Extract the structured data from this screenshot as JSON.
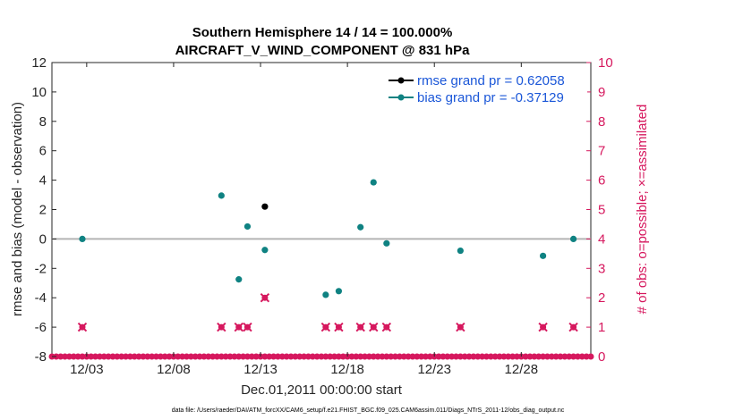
{
  "chart_data": {
    "type": "scatter",
    "title": "Southern Hemisphere 14 / 14 = 100.000%",
    "subtitle": "AIRCRAFT_V_WIND_COMPONENT @ 831 hPa",
    "xlabel": "Dec.01,2011 00:00:00 start",
    "ylabel": "rmse and bias (model - observation)",
    "y2label": "# of obs: o=possible; ×=assimilated",
    "footnote": "data file: /Users/raeder/DAI/ATM_forcXX/CAM6_setup/f.e21.FHIST_BGC.f09_025.CAM6assim.011/Diags_NTrS_2011-12/obs_diag_output.nc",
    "xlim": [
      1,
      32
    ],
    "ylim": [
      -8,
      12
    ],
    "y2lim": [
      0,
      10
    ],
    "x_ticks": [
      3,
      8,
      13,
      18,
      23,
      28
    ],
    "x_tick_labels": [
      "12/03",
      "12/08",
      "12/13",
      "12/18",
      "12/23",
      "12/28"
    ],
    "y_ticks": [
      -8,
      -6,
      -4,
      -2,
      0,
      2,
      4,
      6,
      8,
      10,
      12
    ],
    "y_tick_labels": [
      "-8",
      "-6",
      "-4",
      "-2",
      "0",
      "2",
      "4",
      "6",
      "8",
      "10",
      "12"
    ],
    "y2_ticks": [
      0,
      1,
      2,
      3,
      4,
      5,
      6,
      7,
      8,
      9,
      10
    ],
    "y2_tick_labels": [
      "0",
      "1",
      "2",
      "3",
      "4",
      "5",
      "6",
      "7",
      "8",
      "9",
      "10"
    ],
    "grid": false,
    "legend_position": "top-right",
    "colors": {
      "rmse": "#000000",
      "bias": "#0f8282",
      "obs": "#d6185e",
      "legend_text": "#1b57d8",
      "zero_line": "#b4b4b4"
    },
    "series": [
      {
        "name": "rmse grand pr = 0.62058",
        "axis": "left",
        "marker": "circle",
        "points": [
          {
            "x": 13.25,
            "y": 2.2
          }
        ]
      },
      {
        "name": "bias grand pr = -0.37129",
        "axis": "left",
        "marker": "circle",
        "points": [
          {
            "x": 2.75,
            "y": 0.0
          },
          {
            "x": 10.75,
            "y": 2.95
          },
          {
            "x": 11.75,
            "y": -2.75
          },
          {
            "x": 12.25,
            "y": 0.85
          },
          {
            "x": 13.25,
            "y": -0.75
          },
          {
            "x": 16.75,
            "y": -3.8
          },
          {
            "x": 17.5,
            "y": -3.55
          },
          {
            "x": 18.75,
            "y": 0.8
          },
          {
            "x": 19.5,
            "y": 3.85
          },
          {
            "x": 20.25,
            "y": -0.3
          },
          {
            "x": 24.5,
            "y": -0.8
          },
          {
            "x": 29.25,
            "y": -1.15
          },
          {
            "x": 31.0,
            "y": 0.0
          }
        ]
      },
      {
        "name": "obs possible",
        "axis": "right",
        "marker": "circle",
        "points": [
          {
            "x": 2.75,
            "y": 1
          },
          {
            "x": 10.75,
            "y": 1
          },
          {
            "x": 11.75,
            "y": 1
          },
          {
            "x": 12.25,
            "y": 1
          },
          {
            "x": 13.25,
            "y": 2
          },
          {
            "x": 16.75,
            "y": 1
          },
          {
            "x": 17.5,
            "y": 1
          },
          {
            "x": 18.75,
            "y": 1
          },
          {
            "x": 19.5,
            "y": 1
          },
          {
            "x": 20.25,
            "y": 1
          },
          {
            "x": 24.5,
            "y": 1
          },
          {
            "x": 29.25,
            "y": 1
          },
          {
            "x": 31.0,
            "y": 1
          }
        ]
      },
      {
        "name": "obs assimilated",
        "axis": "right",
        "marker": "x",
        "points": [
          {
            "x": 2.75,
            "y": 1
          },
          {
            "x": 10.75,
            "y": 1
          },
          {
            "x": 11.75,
            "y": 1
          },
          {
            "x": 12.25,
            "y": 1
          },
          {
            "x": 13.25,
            "y": 2
          },
          {
            "x": 16.75,
            "y": 1
          },
          {
            "x": 17.5,
            "y": 1
          },
          {
            "x": 18.75,
            "y": 1
          },
          {
            "x": 19.5,
            "y": 1
          },
          {
            "x": 20.25,
            "y": 1
          },
          {
            "x": 24.5,
            "y": 1
          },
          {
            "x": 29.25,
            "y": 1
          },
          {
            "x": 31.0,
            "y": 1
          }
        ]
      },
      {
        "name": "obs zero",
        "axis": "right",
        "marker": "circle",
        "x_range": [
          1,
          32
        ],
        "x_step": 0.25,
        "y": 0
      }
    ]
  }
}
